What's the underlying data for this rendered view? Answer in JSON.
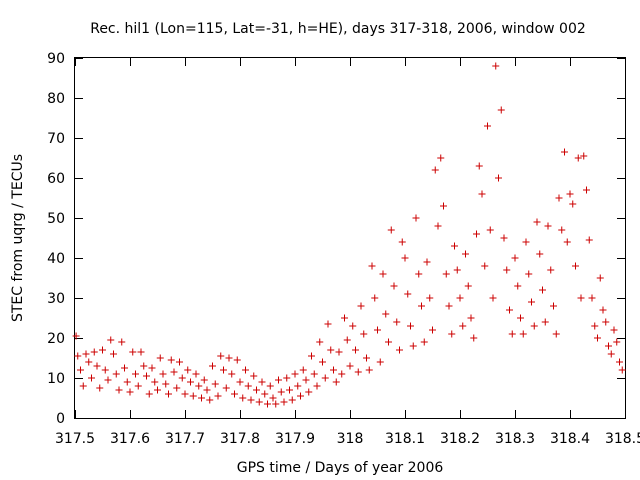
{
  "chart_data": {
    "type": "scatter",
    "title": "Rec. hil1 (Lon=115, Lat=-31, h=HE), days 317-318, 2006, window 002",
    "xlabel": "GPS time / Days of year 2006",
    "ylabel": "STEC from uqrg / TECUs",
    "xlim": [
      317.5,
      318.5
    ],
    "ylim": [
      0,
      90
    ],
    "xticks": [
      317.5,
      317.6,
      317.7,
      317.8,
      317.9,
      318,
      318.1,
      318.2,
      318.3,
      318.4,
      318.5
    ],
    "xtick_labels": [
      "317.5",
      "317.6",
      "317.7",
      "317.8",
      "317.9",
      "318",
      "318.1",
      "318.2",
      "318.3",
      "318.4",
      "318.5"
    ],
    "yticks": [
      0,
      10,
      20,
      30,
      40,
      50,
      60,
      70,
      80,
      90
    ],
    "ytick_labels": [
      "0",
      "10",
      "20",
      "30",
      "40",
      "50",
      "60",
      "70",
      "80",
      "90"
    ],
    "grid": false,
    "legend": "none",
    "marker": "plus",
    "color": "#cc0000",
    "points": [
      [
        317.502,
        20.5
      ],
      [
        317.505,
        15.5
      ],
      [
        317.51,
        12
      ],
      [
        317.515,
        8
      ],
      [
        317.52,
        16
      ],
      [
        317.525,
        14
      ],
      [
        317.53,
        10
      ],
      [
        317.535,
        16.5
      ],
      [
        317.54,
        13
      ],
      [
        317.545,
        7.5
      ],
      [
        317.55,
        17
      ],
      [
        317.555,
        12
      ],
      [
        317.56,
        9.5
      ],
      [
        317.565,
        19.5
      ],
      [
        317.57,
        16
      ],
      [
        317.575,
        11
      ],
      [
        317.58,
        7
      ],
      [
        317.585,
        19
      ],
      [
        317.59,
        12.5
      ],
      [
        317.595,
        9
      ],
      [
        317.6,
        6.5
      ],
      [
        317.605,
        16.5
      ],
      [
        317.61,
        11
      ],
      [
        317.615,
        8
      ],
      [
        317.62,
        16.5
      ],
      [
        317.625,
        13
      ],
      [
        317.63,
        10.5
      ],
      [
        317.635,
        6
      ],
      [
        317.64,
        12.5
      ],
      [
        317.645,
        9
      ],
      [
        317.65,
        7
      ],
      [
        317.655,
        15
      ],
      [
        317.66,
        11
      ],
      [
        317.665,
        8.5
      ],
      [
        317.67,
        6
      ],
      [
        317.675,
        14.5
      ],
      [
        317.68,
        11.5
      ],
      [
        317.685,
        7.5
      ],
      [
        317.69,
        14
      ],
      [
        317.695,
        10
      ],
      [
        317.7,
        6
      ],
      [
        317.705,
        12
      ],
      [
        317.71,
        9
      ],
      [
        317.715,
        5.5
      ],
      [
        317.72,
        11
      ],
      [
        317.725,
        8
      ],
      [
        317.73,
        5
      ],
      [
        317.735,
        9.5
      ],
      [
        317.74,
        7
      ],
      [
        317.745,
        4.5
      ],
      [
        317.75,
        13
      ],
      [
        317.755,
        8.5
      ],
      [
        317.76,
        5.5
      ],
      [
        317.765,
        15.5
      ],
      [
        317.77,
        12
      ],
      [
        317.775,
        7.5
      ],
      [
        317.78,
        15
      ],
      [
        317.785,
        11
      ],
      [
        317.79,
        6
      ],
      [
        317.795,
        14.5
      ],
      [
        317.8,
        9
      ],
      [
        317.805,
        5
      ],
      [
        317.81,
        12
      ],
      [
        317.815,
        8
      ],
      [
        317.82,
        4.5
      ],
      [
        317.825,
        10.5
      ],
      [
        317.83,
        7
      ],
      [
        317.835,
        4
      ],
      [
        317.84,
        9
      ],
      [
        317.845,
        6
      ],
      [
        317.85,
        3.5
      ],
      [
        317.855,
        8
      ],
      [
        317.86,
        5
      ],
      [
        317.865,
        3.5
      ],
      [
        317.87,
        9.5
      ],
      [
        317.875,
        6.5
      ],
      [
        317.88,
        4
      ],
      [
        317.885,
        10
      ],
      [
        317.89,
        7
      ],
      [
        317.895,
        4.5
      ],
      [
        317.9,
        11
      ],
      [
        317.905,
        8
      ],
      [
        317.91,
        5.5
      ],
      [
        317.915,
        12
      ],
      [
        317.92,
        9.5
      ],
      [
        317.925,
        6.5
      ],
      [
        317.93,
        15.5
      ],
      [
        317.935,
        11
      ],
      [
        317.94,
        8
      ],
      [
        317.945,
        19
      ],
      [
        317.95,
        14
      ],
      [
        317.955,
        10
      ],
      [
        317.96,
        23.5
      ],
      [
        317.965,
        17
      ],
      [
        317.97,
        12
      ],
      [
        317.975,
        9
      ],
      [
        317.98,
        16.5
      ],
      [
        317.985,
        11
      ],
      [
        317.99,
        25
      ],
      [
        317.995,
        19.5
      ],
      [
        318,
        13
      ],
      [
        318.005,
        23
      ],
      [
        318.01,
        17
      ],
      [
        318.015,
        11.5
      ],
      [
        318.02,
        28
      ],
      [
        318.025,
        21
      ],
      [
        318.03,
        15
      ],
      [
        318.035,
        12
      ],
      [
        318.04,
        38
      ],
      [
        318.045,
        30
      ],
      [
        318.05,
        22
      ],
      [
        318.055,
        14
      ],
      [
        318.06,
        36
      ],
      [
        318.065,
        26
      ],
      [
        318.07,
        19
      ],
      [
        318.075,
        47
      ],
      [
        318.08,
        33
      ],
      [
        318.085,
        24
      ],
      [
        318.09,
        17
      ],
      [
        318.095,
        44
      ],
      [
        318.1,
        40
      ],
      [
        318.105,
        31
      ],
      [
        318.11,
        23
      ],
      [
        318.115,
        18
      ],
      [
        318.12,
        50
      ],
      [
        318.125,
        36
      ],
      [
        318.13,
        28
      ],
      [
        318.135,
        19
      ],
      [
        318.14,
        39
      ],
      [
        318.145,
        30
      ],
      [
        318.15,
        22
      ],
      [
        318.155,
        62
      ],
      [
        318.16,
        48
      ],
      [
        318.165,
        65
      ],
      [
        318.17,
        53
      ],
      [
        318.175,
        36
      ],
      [
        318.18,
        28
      ],
      [
        318.185,
        21
      ],
      [
        318.19,
        43
      ],
      [
        318.195,
        37
      ],
      [
        318.2,
        30
      ],
      [
        318.205,
        23
      ],
      [
        318.21,
        41
      ],
      [
        318.215,
        33
      ],
      [
        318.22,
        25
      ],
      [
        318.225,
        20
      ],
      [
        318.23,
        46
      ],
      [
        318.235,
        63
      ],
      [
        318.24,
        56
      ],
      [
        318.245,
        38
      ],
      [
        318.25,
        73
      ],
      [
        318.255,
        47
      ],
      [
        318.26,
        30
      ],
      [
        318.265,
        88
      ],
      [
        318.27,
        60
      ],
      [
        318.275,
        77
      ],
      [
        318.28,
        45
      ],
      [
        318.285,
        37
      ],
      [
        318.29,
        27
      ],
      [
        318.295,
        21
      ],
      [
        318.3,
        40
      ],
      [
        318.305,
        33
      ],
      [
        318.31,
        25
      ],
      [
        318.315,
        21
      ],
      [
        318.32,
        44
      ],
      [
        318.325,
        36
      ],
      [
        318.33,
        29
      ],
      [
        318.335,
        23
      ],
      [
        318.34,
        49
      ],
      [
        318.345,
        41
      ],
      [
        318.35,
        32
      ],
      [
        318.355,
        24
      ],
      [
        318.36,
        48
      ],
      [
        318.365,
        37
      ],
      [
        318.37,
        28
      ],
      [
        318.375,
        21
      ],
      [
        318.38,
        55
      ],
      [
        318.385,
        47
      ],
      [
        318.39,
        66.5
      ],
      [
        318.395,
        44
      ],
      [
        318.4,
        56
      ],
      [
        318.405,
        53.5
      ],
      [
        318.41,
        38
      ],
      [
        318.415,
        65
      ],
      [
        318.42,
        30
      ],
      [
        318.425,
        65.5
      ],
      [
        318.43,
        57
      ],
      [
        318.435,
        44.5
      ],
      [
        318.44,
        30
      ],
      [
        318.445,
        23
      ],
      [
        318.45,
        20
      ],
      [
        318.455,
        35
      ],
      [
        318.46,
        27
      ],
      [
        318.465,
        24
      ],
      [
        318.47,
        18
      ],
      [
        318.475,
        16
      ],
      [
        318.48,
        22
      ],
      [
        318.485,
        19
      ],
      [
        318.49,
        14
      ],
      [
        318.495,
        12
      ]
    ]
  }
}
